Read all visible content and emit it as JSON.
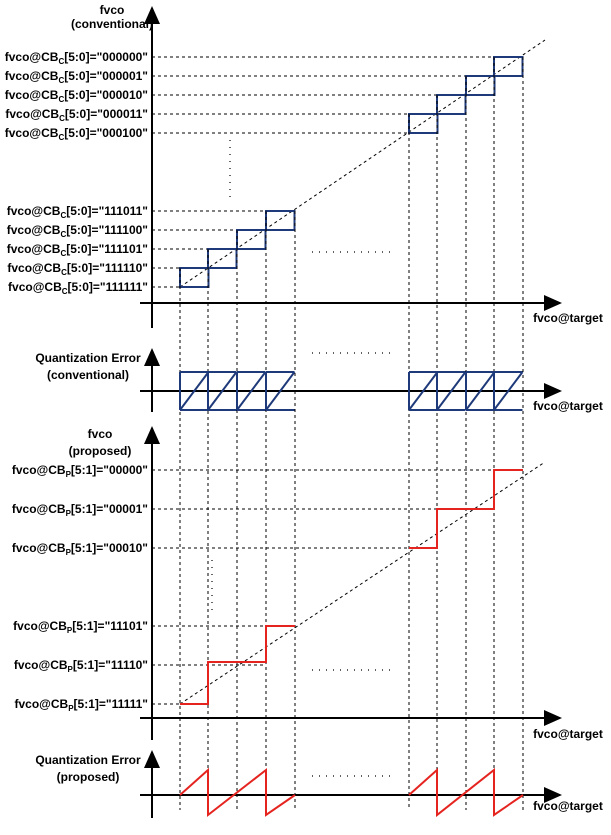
{
  "conventional": {
    "axis_title": "fvco",
    "axis_subtitle": "(conventional)",
    "label_prefix": "fvco@CB",
    "label_sub": "C",
    "label_range": "[5:0]=",
    "codes": [
      "\"000000\"",
      "\"000001\"",
      "\"000010\"",
      "\"000011\"",
      "\"000100\"",
      "\"111011\"",
      "\"111100\"",
      "\"111101\"",
      "\"111110\"",
      "\"111111\""
    ],
    "x_label": "fvco@target"
  },
  "quantization_conventional": {
    "title": "Quantization Error",
    "subtitle": "(conventional)",
    "x_label": "fvco@target"
  },
  "proposed": {
    "axis_title": "fvco",
    "axis_subtitle": "(proposed)",
    "label_prefix": "fvco@CB",
    "label_sub": "P",
    "label_range": "[5:1]=",
    "codes": [
      "\"00000\"",
      "\"00001\"",
      "\"00010\"",
      "\"11101\"",
      "\"11110\"",
      "\"11111\""
    ],
    "x_label": "fvco@target"
  },
  "quantization_proposed": {
    "title": "Quantization Error",
    "subtitle": "(proposed)",
    "x_label": "fvco@target"
  }
}
